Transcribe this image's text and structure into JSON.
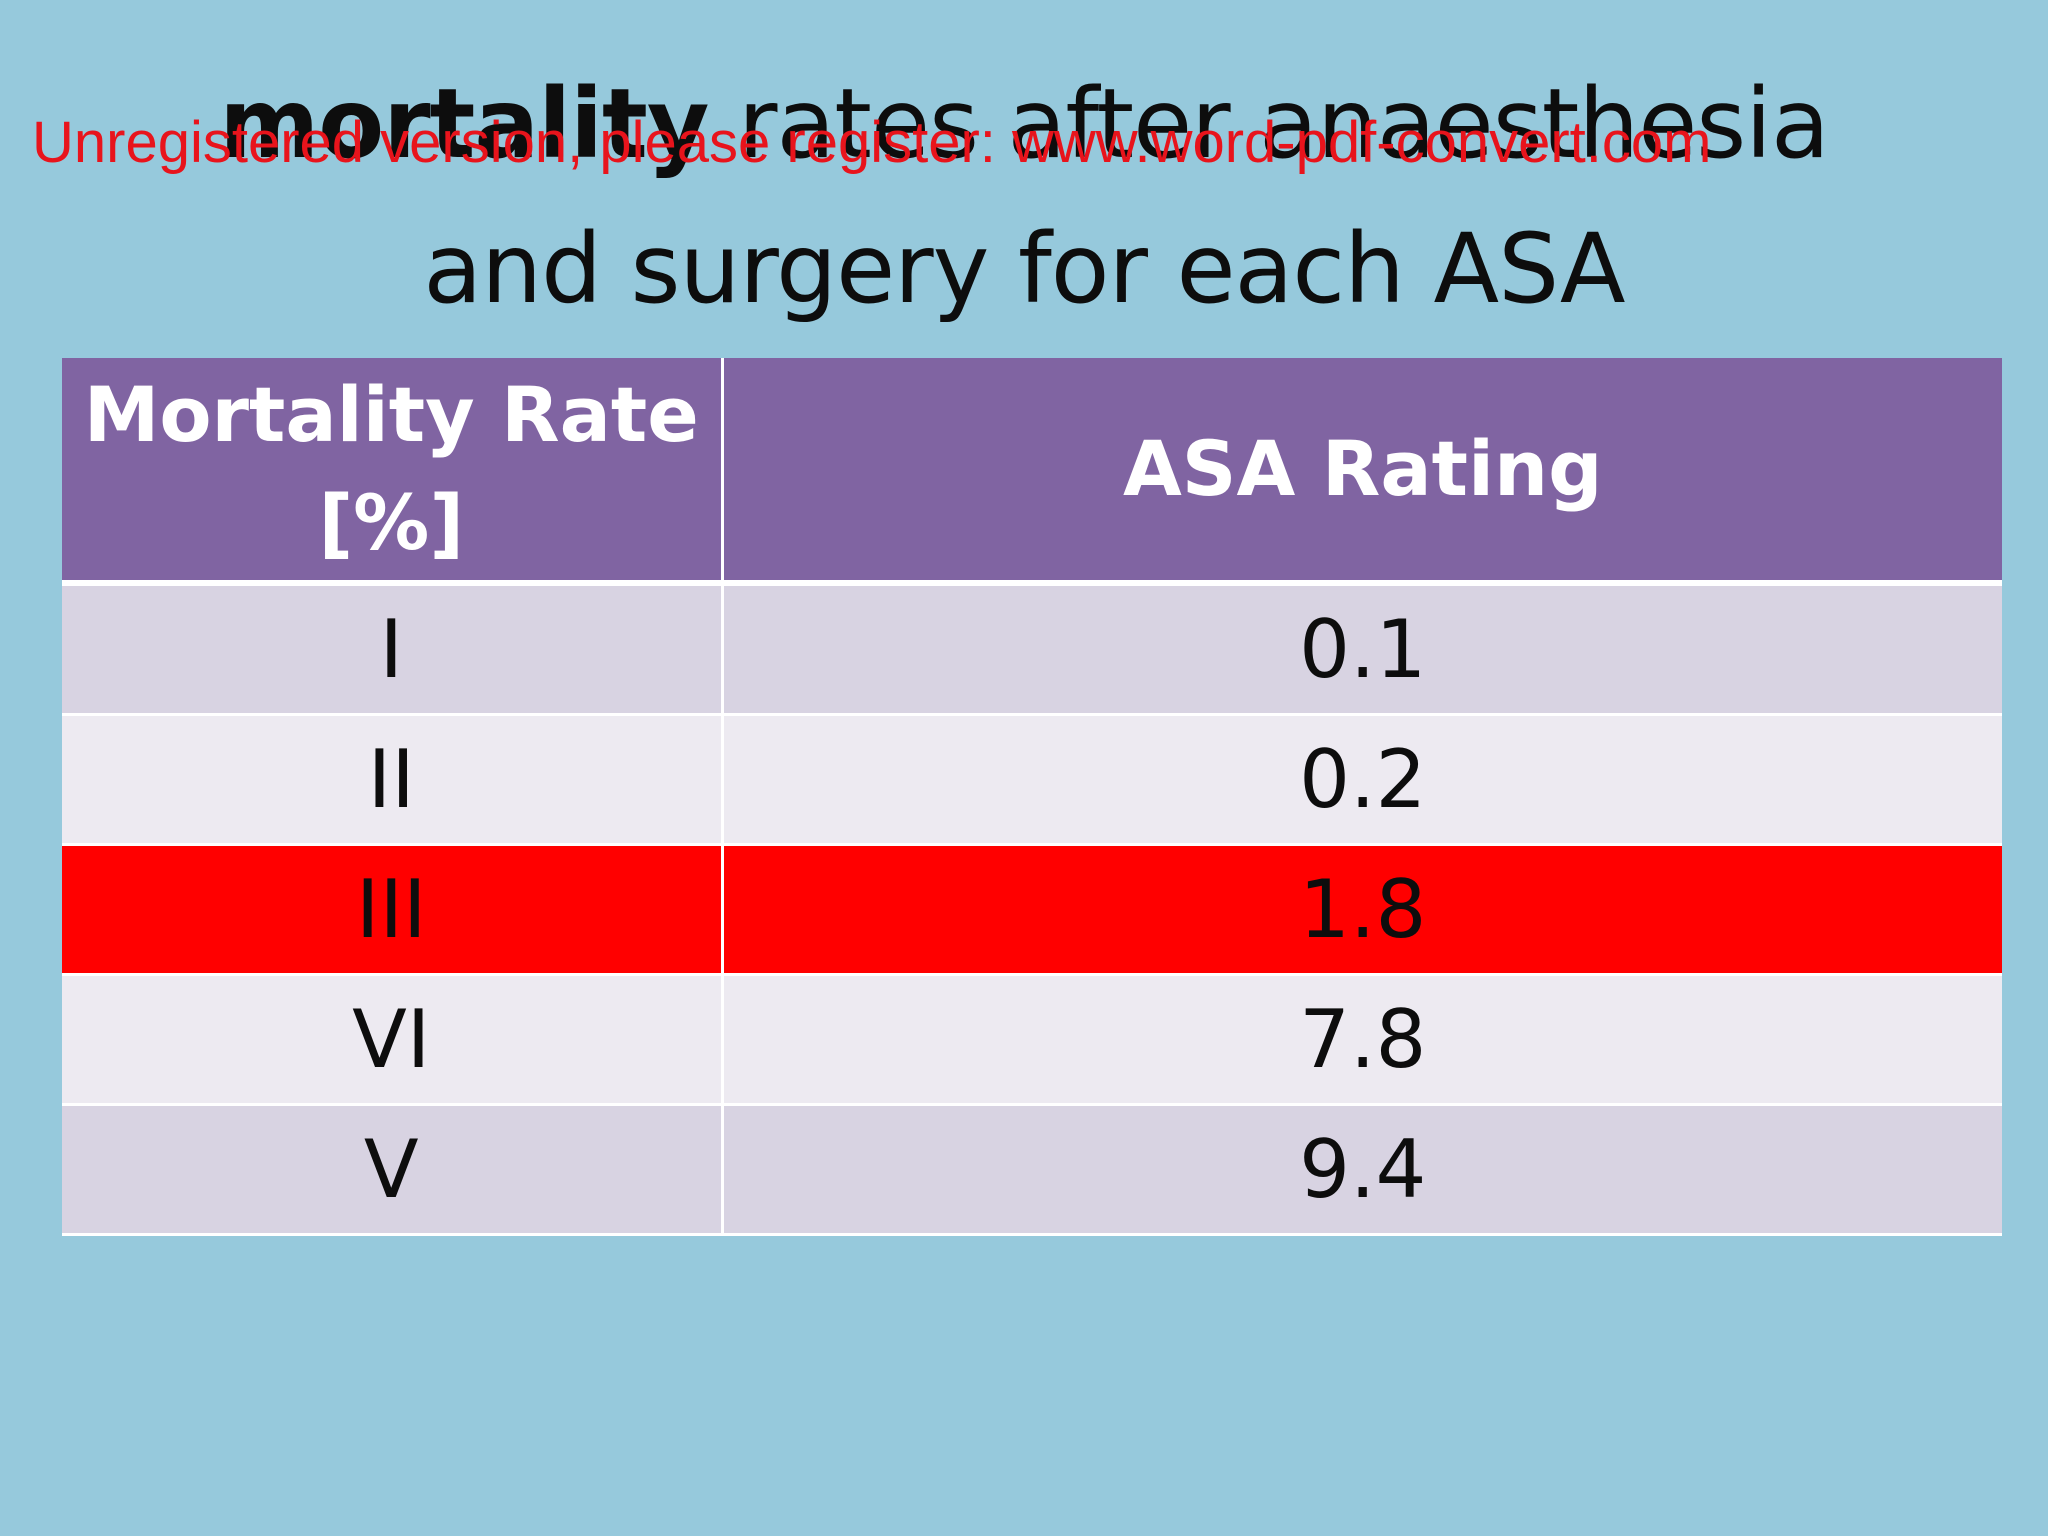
{
  "slide": {
    "title_line1_bold": "mortality",
    "title_line1_rest": " rates after anaesthesia",
    "title_line2": "and surgery for each ASA",
    "watermark": "Unregistered version, please register: www.word-pdf-convert.com"
  },
  "table": {
    "header": {
      "col1": "Mortality Rate [%]",
      "col2": "ASA Rating"
    },
    "rows": [
      {
        "col1": "I",
        "col2": "0.1",
        "highlight": false
      },
      {
        "col1": "II",
        "col2": "0.2",
        "highlight": false
      },
      {
        "col1": "III",
        "col2": "1.8",
        "highlight": true
      },
      {
        "col1": "VI",
        "col2": "7.8",
        "highlight": false
      },
      {
        "col1": "V",
        "col2": "9.4",
        "highlight": false
      }
    ]
  },
  "colors": {
    "background": "#96c9dc",
    "header_fill": "#8064a2",
    "row_band_dark": "#d8d3e2",
    "row_band_light": "#edeaf1",
    "highlight_fill": "#ff0000",
    "watermark_text": "#e8141c"
  }
}
